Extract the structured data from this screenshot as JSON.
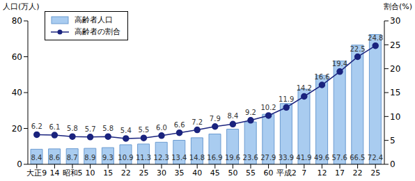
{
  "chart_data": {
    "type": "bar",
    "y_label": "人口(万人)",
    "y2_label": "割合(%)",
    "categories": [
      "大正9",
      "14",
      "昭和5",
      "10",
      "15",
      "22",
      "25",
      "30",
      "35",
      "40",
      "45",
      "50",
      "55",
      "60",
      "平成2",
      "7",
      "12",
      "17",
      "22",
      "25"
    ],
    "series": [
      {
        "name": "高齢者人口",
        "type": "bar",
        "color": "#a9ccf0",
        "values": [
          8.4,
          8.6,
          8.7,
          8.9,
          9.3,
          10.9,
          11.3,
          12.3,
          13.4,
          14.8,
          16.9,
          19.6,
          23.6,
          27.9,
          33.9,
          41.9,
          49.6,
          57.6,
          66.5,
          72.4
        ],
        "value_labels": [
          "8.4",
          "8.6",
          "8.7",
          "8.9",
          "9.3",
          "10.9",
          "11.3",
          "12.3",
          "13.4",
          "14.8",
          "16.9",
          "19.6",
          "23.6",
          "27.9",
          "33.9",
          "41.9",
          "49.6",
          "57.6",
          "66.5",
          "72.4"
        ]
      },
      {
        "name": "高齢者の割合",
        "type": "line",
        "axis": "y2",
        "color": "#1a237e",
        "marker": "circle",
        "values": [
          6.2,
          6.1,
          5.8,
          5.7,
          5.8,
          5.4,
          5.5,
          6.0,
          6.6,
          7.2,
          7.9,
          8.4,
          9.2,
          10.2,
          11.9,
          14.2,
          16.6,
          19.4,
          22.5,
          24.8
        ],
        "value_labels": [
          "6.2",
          "6.1",
          "5.8",
          "5.7",
          "5.8",
          "5.4",
          "5.5",
          "6.0",
          "6.6",
          "7.2",
          "7.9",
          "8.4",
          "9.2",
          "10.2",
          "11.9",
          "14.2",
          "16.6",
          "19.4",
          "22.5",
          "24.8"
        ]
      }
    ],
    "ylim": [
      0,
      80
    ],
    "yticks": [
      0,
      20,
      40,
      60,
      80
    ],
    "y2lim": [
      0,
      30
    ],
    "y2ticks": [
      0,
      5,
      10,
      15,
      20,
      25,
      30
    ],
    "legend": "upper left",
    "grid": false,
    "data_labels": true
  }
}
